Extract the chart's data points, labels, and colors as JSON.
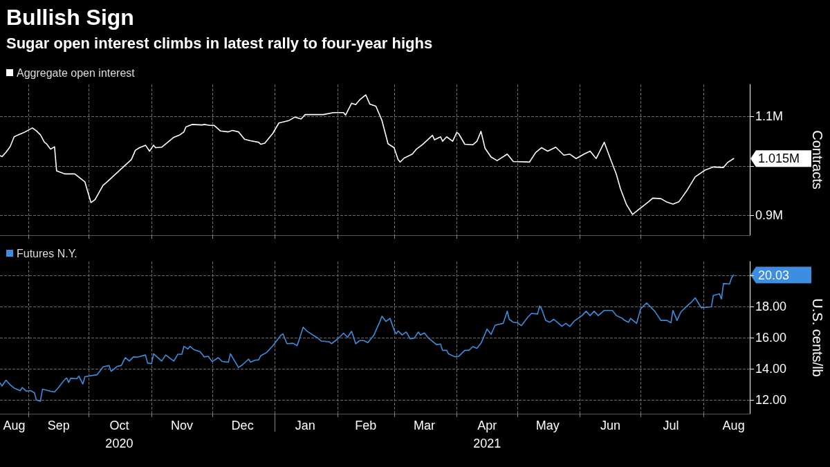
{
  "chart_data": [
    {
      "type": "line",
      "title": "Bullish Sign",
      "subtitle": "Sugar open interest climbs in latest rally to four-year highs",
      "ylabel": "Contracts",
      "legend": "top left",
      "grid": true,
      "line_style": "solid",
      "tick_labels": "y",
      "xlim": [
        "2020-08-18",
        "2021-08-24"
      ],
      "xticks": [
        {
          "value": "2020-09-01",
          "label": null
        },
        {
          "value": "2020-10-01",
          "label": null
        },
        {
          "value": "2020-11-01",
          "label": null
        },
        {
          "value": "2020-12-01",
          "label": null
        },
        {
          "value": "2021-01-01",
          "label": null
        },
        {
          "value": "2021-02-01",
          "label": null
        },
        {
          "value": "2021-03-01",
          "label": null
        },
        {
          "value": "2021-04-01",
          "label": null
        },
        {
          "value": "2021-05-01",
          "label": null
        },
        {
          "value": "2021-06-01",
          "label": null
        },
        {
          "value": "2021-07-01",
          "label": null
        },
        {
          "value": "2021-08-01",
          "label": null
        }
      ],
      "ylim": [
        860000,
        1165000
      ],
      "yticks": [
        {
          "value": 900000,
          "label": "0.9M"
        },
        {
          "value": 1000000,
          "label": null
        },
        {
          "value": 1100000,
          "label": "1.1M"
        }
      ],
      "annotations": [
        {
          "text": "1.015M",
          "x": "2021-08-16",
          "y": 1015000
        }
      ],
      "series": [
        {
          "name": "Aggregate open interest",
          "color": "#ffffff",
          "x": [
            "2020-08-18",
            "2020-08-19",
            "2020-08-21",
            "2020-08-23",
            "2020-08-25",
            "2020-08-27",
            "2020-08-30",
            "2020-09-03",
            "2020-09-05",
            "2020-09-07",
            "2020-09-09",
            "2020-09-10",
            "2020-09-12",
            "2020-09-14",
            "2020-09-15",
            "2020-09-19",
            "2020-09-24",
            "2020-09-29",
            "2020-10-02",
            "2020-10-04",
            "2020-10-08",
            "2020-10-10",
            "2020-10-22",
            "2020-10-24",
            "2020-10-26",
            "2020-10-29",
            "2020-10-31",
            "2020-11-02",
            "2020-11-03",
            "2020-11-06",
            "2020-11-12",
            "2020-11-15",
            "2020-11-17",
            "2020-11-18",
            "2020-11-21",
            "2020-11-26",
            "2020-11-27",
            "2020-11-30",
            "2020-12-02",
            "2020-12-05",
            "2020-12-09",
            "2020-12-11",
            "2020-12-14",
            "2020-12-17",
            "2020-12-20",
            "2020-12-24",
            "2020-12-25",
            "2020-12-27",
            "2020-12-31",
            "2021-01-03",
            "2021-01-08",
            "2021-01-11",
            "2021-01-14",
            "2021-01-16",
            "2021-01-20",
            "2021-01-25",
            "2021-01-30",
            "2021-02-04",
            "2021-02-05",
            "2021-02-08",
            "2021-02-10",
            "2021-02-12",
            "2021-02-15",
            "2021-02-17",
            "2021-02-20",
            "2021-02-23",
            "2021-02-26",
            "2021-03-01",
            "2021-03-03",
            "2021-03-04",
            "2021-03-06",
            "2021-03-10",
            "2021-03-12",
            "2021-03-15",
            "2021-03-20",
            "2021-03-21",
            "2021-03-24",
            "2021-03-25",
            "2021-03-27",
            "2021-03-30",
            "2021-04-01",
            "2021-04-02",
            "2021-04-05",
            "2021-04-09",
            "2021-04-11",
            "2021-04-13",
            "2021-04-15",
            "2021-04-18",
            "2021-04-21",
            "2021-04-26",
            "2021-04-29",
            "2021-05-07",
            "2021-05-10",
            "2021-05-13",
            "2021-05-16",
            "2021-05-20",
            "2021-05-24",
            "2021-05-27",
            "2021-05-30",
            "2021-06-03",
            "2021-06-06",
            "2021-06-09",
            "2021-06-13",
            "2021-06-16",
            "2021-06-19",
            "2021-06-21",
            "2021-06-24",
            "2021-06-27",
            "2021-07-05",
            "2021-07-07",
            "2021-07-11",
            "2021-07-14",
            "2021-07-17",
            "2021-07-20",
            "2021-07-24",
            "2021-07-28",
            "2021-08-02",
            "2021-08-06",
            "2021-08-11",
            "2021-08-13",
            "2021-08-16"
          ],
          "values": [
            1021000,
            1019000,
            1028000,
            1039000,
            1059000,
            1063000,
            1068000,
            1077000,
            1071000,
            1063000,
            1048000,
            1045000,
            1034000,
            1039000,
            990000,
            984000,
            984000,
            968000,
            926000,
            932000,
            961000,
            968000,
            1013000,
            1032000,
            1037000,
            1042000,
            1030000,
            1042000,
            1037000,
            1038000,
            1058000,
            1063000,
            1069000,
            1079000,
            1084000,
            1083000,
            1084000,
            1082000,
            1082000,
            1071000,
            1069000,
            1072000,
            1069000,
            1054000,
            1051000,
            1048000,
            1044000,
            1046000,
            1066000,
            1087000,
            1092000,
            1099000,
            1095000,
            1104000,
            1104000,
            1104000,
            1108000,
            1108000,
            1103000,
            1127000,
            1124000,
            1134000,
            1144000,
            1125000,
            1121000,
            1092000,
            1045000,
            1037000,
            1013000,
            1008000,
            1016000,
            1024000,
            1034000,
            1043000,
            1062000,
            1053000,
            1059000,
            1050000,
            1059000,
            1050000,
            1068000,
            1065000,
            1044000,
            1043000,
            1050000,
            1070000,
            1036000,
            1018000,
            1011000,
            1024000,
            1009000,
            1008000,
            1027000,
            1037000,
            1030000,
            1038000,
            1022000,
            1024000,
            1015000,
            1024000,
            1030000,
            1015000,
            1048000,
            1015000,
            983000,
            954000,
            922000,
            902000,
            928000,
            935000,
            934000,
            927000,
            923000,
            928000,
            951000,
            978000,
            992000,
            998000,
            997000,
            1007000,
            1015000
          ]
        }
      ]
    },
    {
      "type": "line",
      "ylabel": "U.S. cents/lb",
      "legend": "top left",
      "grid": true,
      "line_style": "solid",
      "xlim": [
        "2020-08-18",
        "2021-08-24"
      ],
      "xticks": [
        {
          "value": "2020-08-25",
          "label": "Aug"
        },
        {
          "value": "2020-09-01",
          "label": null
        },
        {
          "value": "2020-09-16",
          "label": "Sep"
        },
        {
          "value": "2020-10-01",
          "label": null
        },
        {
          "value": "2020-10-16",
          "label": "Oct"
        },
        {
          "value": "2020-11-01",
          "label": null
        },
        {
          "value": "2020-11-16",
          "label": "Nov"
        },
        {
          "value": "2020-12-01",
          "label": null
        },
        {
          "value": "2020-12-16",
          "label": "Dec"
        },
        {
          "value": "2021-01-01",
          "label": null
        },
        {
          "value": "2021-01-16",
          "label": "Jan"
        },
        {
          "value": "2021-02-01",
          "label": null
        },
        {
          "value": "2021-02-15",
          "label": "Feb"
        },
        {
          "value": "2021-03-01",
          "label": null
        },
        {
          "value": "2021-03-16",
          "label": "Mar"
        },
        {
          "value": "2021-04-01",
          "label": null
        },
        {
          "value": "2021-04-16",
          "label": "Apr"
        },
        {
          "value": "2021-05-01",
          "label": null
        },
        {
          "value": "2021-05-16",
          "label": "May"
        },
        {
          "value": "2021-06-01",
          "label": null
        },
        {
          "value": "2021-06-16",
          "label": "Jun"
        },
        {
          "value": "2021-07-01",
          "label": null
        },
        {
          "value": "2021-07-16",
          "label": "Jul"
        },
        {
          "value": "2021-08-01",
          "label": null
        },
        {
          "value": "2021-08-16",
          "label": "Aug"
        }
      ],
      "x2lim": [
        "2020-08-18",
        "2021-08-24"
      ],
      "x2ticks": [
        {
          "value": "2020-10-16",
          "label": "2020"
        },
        {
          "value": "2021-01-01",
          "label": null
        },
        {
          "value": "2021-04-16",
          "label": "2021"
        }
      ],
      "ylim": [
        11.1,
        20.9
      ],
      "yticks": [
        {
          "value": 12,
          "label": "12.00"
        },
        {
          "value": 14,
          "label": "14.00"
        },
        {
          "value": 16,
          "label": "16.00"
        },
        {
          "value": 18,
          "label": "18.00"
        },
        {
          "value": 20,
          "label": null
        }
      ],
      "annotations": [
        {
          "text": "20.03",
          "x": "2021-08-16",
          "y": 20.03
        }
      ],
      "series": [
        {
          "name": "Futures N.Y.",
          "color": "#3d8ee0",
          "x": [
            "2020-08-18",
            "2020-08-19",
            "2020-08-21",
            "2020-08-23",
            "2020-08-25",
            "2020-08-28",
            "2020-08-29",
            "2020-08-31",
            "2020-09-02",
            "2020-09-04",
            "2020-09-05",
            "2020-09-07",
            "2020-09-08",
            "2020-09-12",
            "2020-09-14",
            "2020-09-16",
            "2020-09-19",
            "2020-09-20",
            "2020-09-21",
            "2020-09-22",
            "2020-09-25",
            "2020-09-26",
            "2020-09-28",
            "2020-09-29",
            "2020-10-05",
            "2020-10-08",
            "2020-10-11",
            "2020-10-12",
            "2020-10-15",
            "2020-10-17",
            "2020-10-19",
            "2020-10-21",
            "2020-10-23",
            "2020-10-25",
            "2020-10-29",
            "2020-10-30",
            "2020-11-01",
            "2020-11-02",
            "2020-11-06",
            "2020-11-08",
            "2020-11-12",
            "2020-11-14",
            "2020-11-16",
            "2020-11-17",
            "2020-11-19",
            "2020-11-20",
            "2020-11-22",
            "2020-11-25",
            "2020-11-27",
            "2020-11-29",
            "2020-12-01",
            "2020-12-04",
            "2020-12-06",
            "2020-12-09",
            "2020-12-10",
            "2020-12-14",
            "2020-12-16",
            "2020-12-19",
            "2020-12-20",
            "2020-12-22",
            "2020-12-24",
            "2020-12-25",
            "2020-12-28",
            "2020-12-31",
            "2021-01-04",
            "2021-01-05",
            "2021-01-07",
            "2021-01-10",
            "2021-01-12",
            "2021-01-13",
            "2021-01-15",
            "2021-01-17",
            "2021-01-19",
            "2021-01-22",
            "2021-01-24",
            "2021-01-28",
            "2021-01-29",
            "2021-02-01",
            "2021-02-04",
            "2021-02-06",
            "2021-02-08",
            "2021-02-10",
            "2021-02-12",
            "2021-02-14",
            "2021-02-16",
            "2021-02-19",
            "2021-02-21",
            "2021-02-22",
            "2021-02-23",
            "2021-02-25",
            "2021-02-27",
            "2021-03-01",
            "2021-03-02",
            "2021-03-03",
            "2021-03-05",
            "2021-03-07",
            "2021-03-09",
            "2021-03-11",
            "2021-03-13",
            "2021-03-14",
            "2021-03-16",
            "2021-03-18",
            "2021-03-22",
            "2021-03-24",
            "2021-03-25",
            "2021-03-27",
            "2021-03-28",
            "2021-03-31",
            "2021-04-02",
            "2021-04-05",
            "2021-04-07",
            "2021-04-09",
            "2021-04-11",
            "2021-04-13",
            "2021-04-15",
            "2021-04-16",
            "2021-04-18",
            "2021-04-20",
            "2021-04-24",
            "2021-04-26",
            "2021-04-27",
            "2021-04-29",
            "2021-05-01",
            "2021-05-03",
            "2021-05-06",
            "2021-05-08",
            "2021-05-11",
            "2021-05-12",
            "2021-05-13",
            "2021-05-15",
            "2021-05-17",
            "2021-05-19",
            "2021-05-21",
            "2021-05-23",
            "2021-05-25",
            "2021-05-27",
            "2021-05-29",
            "2021-06-02",
            "2021-06-04",
            "2021-06-06",
            "2021-06-08",
            "2021-06-10",
            "2021-06-13",
            "2021-06-17",
            "2021-06-19",
            "2021-06-22",
            "2021-06-23",
            "2021-06-25",
            "2021-06-26",
            "2021-06-29",
            "2021-07-01",
            "2021-07-04",
            "2021-07-08",
            "2021-07-11",
            "2021-07-14",
            "2021-07-16",
            "2021-07-17",
            "2021-07-19",
            "2021-07-21",
            "2021-07-24",
            "2021-07-26",
            "2021-07-28",
            "2021-07-31",
            "2021-08-05",
            "2021-08-06",
            "2021-08-09",
            "2021-08-10",
            "2021-08-11",
            "2021-08-14",
            "2021-08-15",
            "2021-08-16"
          ],
          "values": [
            13.09,
            12.89,
            13.26,
            12.96,
            12.75,
            12.58,
            12.79,
            12.55,
            12.59,
            12.46,
            11.99,
            11.9,
            12.68,
            12.55,
            12.5,
            12.79,
            13.3,
            13.4,
            13.12,
            13.39,
            13.35,
            13.52,
            13.01,
            13.48,
            13.61,
            14.12,
            14.2,
            13.83,
            14.15,
            14.2,
            14.71,
            14.49,
            14.76,
            14.74,
            14.88,
            14.37,
            14.32,
            14.96,
            14.49,
            14.88,
            14.49,
            14.93,
            14.93,
            15.44,
            15.27,
            15.44,
            15.22,
            15.1,
            14.76,
            14.8,
            14.46,
            14.71,
            14.46,
            14.42,
            14.96,
            14.08,
            14.25,
            14.62,
            14.42,
            14.54,
            14.57,
            14.83,
            15.05,
            15.48,
            16.16,
            16.24,
            15.61,
            15.64,
            15.48,
            15.85,
            16.67,
            16.41,
            16.24,
            15.99,
            15.78,
            15.73,
            15.61,
            15.9,
            16.29,
            16.02,
            16.41,
            15.61,
            15.81,
            15.81,
            15.68,
            16.16,
            16.75,
            17.04,
            17.38,
            17.04,
            17.24,
            16.49,
            16.24,
            16.43,
            16.17,
            16.36,
            15.92,
            15.97,
            16.36,
            16.17,
            16.3,
            15.97,
            15.55,
            15.59,
            15.18,
            15.18,
            14.95,
            14.77,
            14.8,
            15.18,
            15.18,
            15.42,
            15.31,
            15.64,
            16.24,
            16.55,
            16.21,
            16.8,
            16.92,
            17.7,
            17.18,
            16.99,
            16.96,
            16.77,
            17.29,
            17.56,
            17.52,
            18.04,
            17.85,
            17.11,
            16.99,
            17.18,
            16.96,
            16.73,
            16.92,
            16.72,
            17.05,
            17.42,
            17.7,
            17.42,
            17.7,
            17.42,
            17.75,
            17.75,
            17.42,
            17.24,
            17.11,
            16.99,
            17.24,
            16.92,
            17.85,
            18.23,
            17.7,
            17.11,
            17.11,
            16.96,
            17.75,
            17.11,
            17.67,
            18.04,
            18.27,
            18.56,
            17.92,
            17.98,
            18.72,
            18.82,
            18.49,
            19.48,
            19.45,
            19.85,
            20.03
          ]
        }
      ]
    }
  ]
}
